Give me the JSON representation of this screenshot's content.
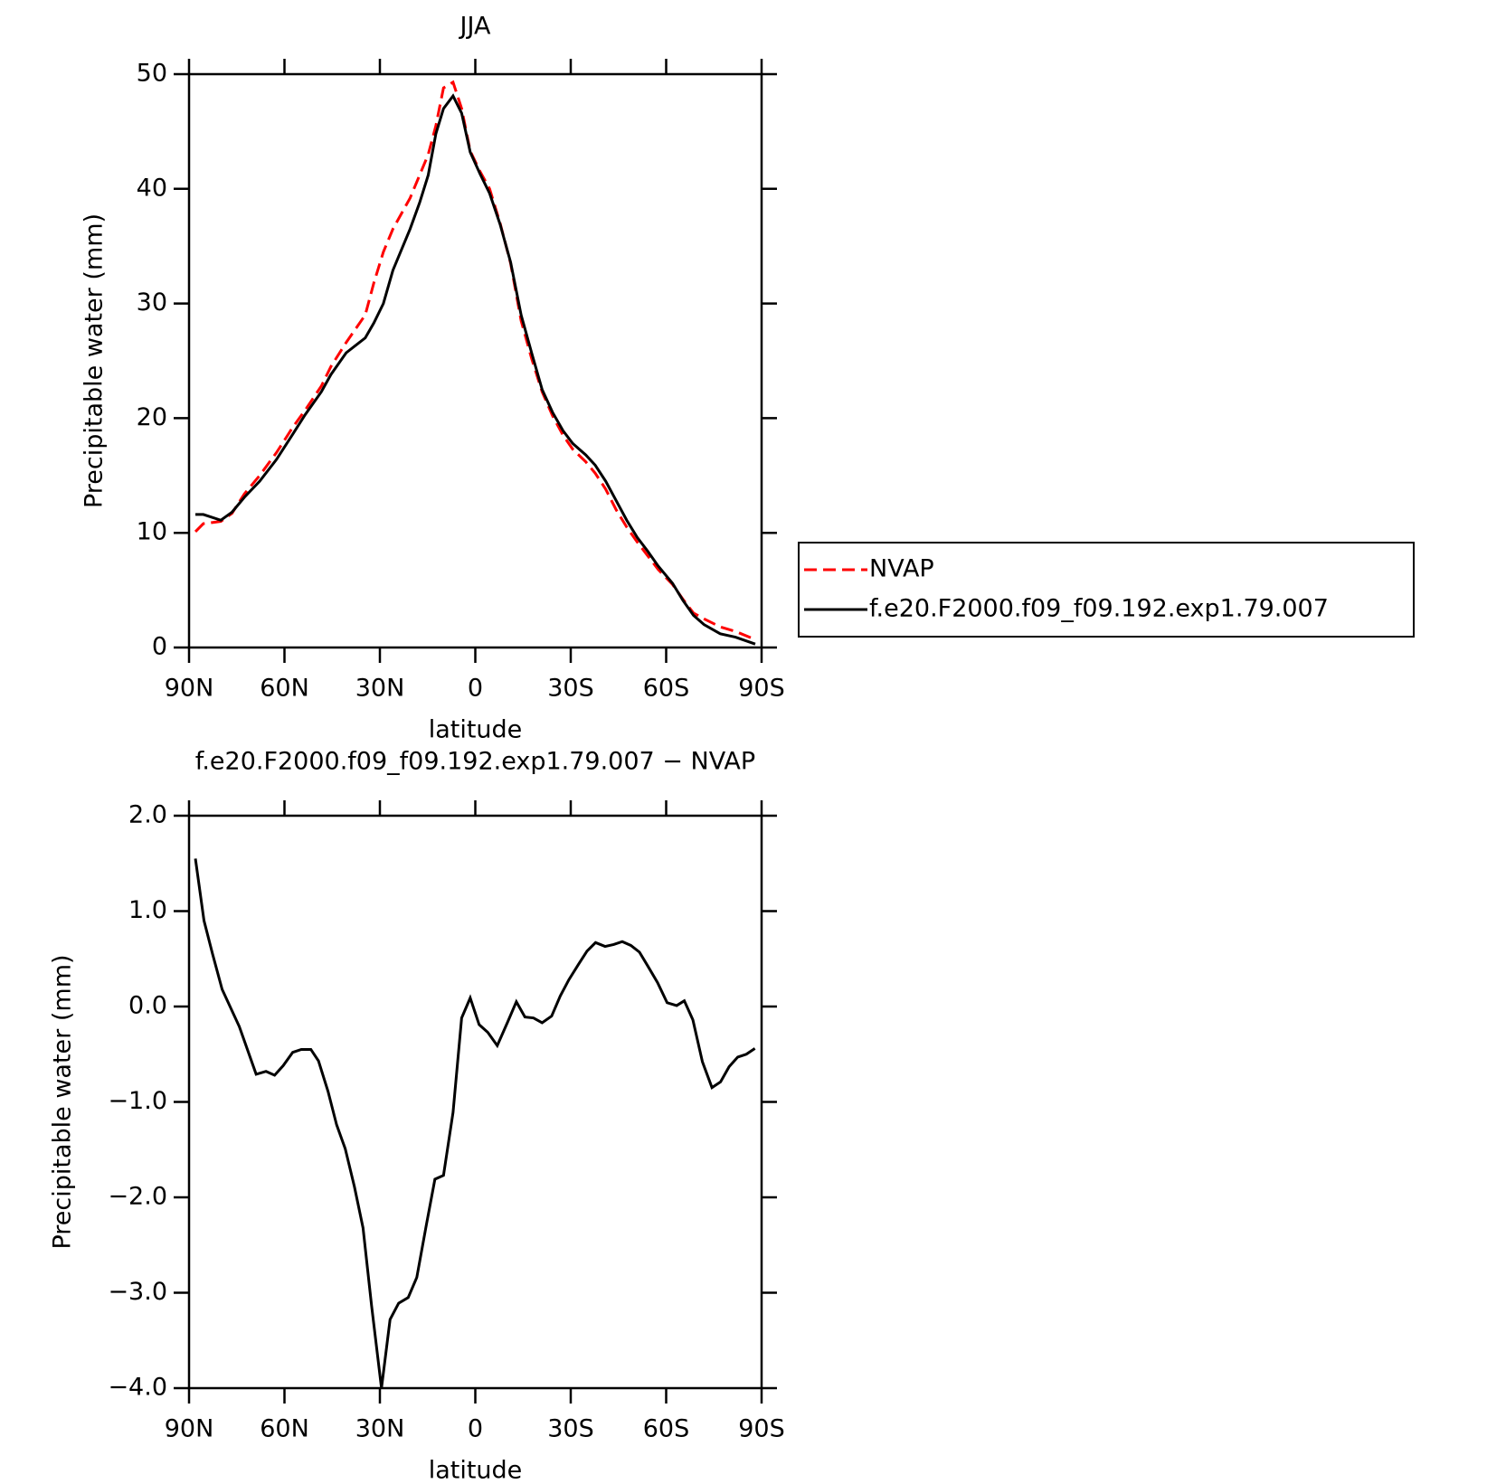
{
  "chart_data": [
    {
      "type": "line",
      "title": "JJA",
      "xlabel": "latitude",
      "ylabel": "Precipitable water (mm)",
      "legend": "right",
      "x": [
        88,
        85.5,
        80,
        76.5,
        72.6,
        67.8,
        62.5,
        57.4,
        53.5,
        48.4,
        45.4,
        40.6,
        34.6,
        31.9,
        28.9,
        25.9,
        20.5,
        17.5,
        14.8,
        12.4,
        10.0,
        7.0,
        4.3,
        1.6,
        -1.5,
        -4.5,
        -7.8,
        -11.1,
        -14.4,
        -17.7,
        -21.0,
        -24.3,
        -27.6,
        -30.6,
        -34.7,
        -37.7,
        -41.0,
        -44.3,
        -47.6,
        -50.9,
        -54.2,
        -57.5,
        -62.0,
        -65.3,
        -68.6,
        -71.9,
        -77,
        -81.8,
        -88
      ],
      "series": [
        {
          "name": "NVAP",
          "color": "#ff0000",
          "style": "dashed",
          "values": [
            10.1,
            10.8,
            11.0,
            11.7,
            13.4,
            15.0,
            17.0,
            19.2,
            20.7,
            22.8,
            24.5,
            26.6,
            29.0,
            31.8,
            34.5,
            36.5,
            39.2,
            41.2,
            43.0,
            45.5,
            48.8,
            49.3,
            47.0,
            43.3,
            41.5,
            40.0,
            37.0,
            33.5,
            28.5,
            25.2,
            22.3,
            20.2,
            18.5,
            17.3,
            16.2,
            15.2,
            13.8,
            12.0,
            10.5,
            9.2,
            8.0,
            6.8,
            5.5,
            4.2,
            3.0,
            2.5,
            1.8,
            1.4,
            0.7
          ]
        },
        {
          "name": "f.e20.F2000.f09_f09.192.exp1.79.007",
          "color": "#000000",
          "style": "solid",
          "values": [
            11.6,
            11.6,
            11.1,
            11.8,
            13.1,
            14.5,
            16.4,
            18.6,
            20.3,
            22.3,
            23.8,
            25.7,
            27.0,
            28.3,
            30.0,
            32.9,
            36.5,
            38.8,
            41.2,
            44.8,
            47.0,
            48.1,
            46.6,
            43.2,
            41.3,
            39.6,
            36.9,
            33.6,
            29.0,
            25.7,
            22.5,
            20.5,
            18.9,
            17.8,
            16.8,
            15.9,
            14.5,
            12.8,
            11.1,
            9.6,
            8.4,
            7.1,
            5.6,
            4.1,
            2.8,
            2.0,
            1.2,
            0.9,
            0.3
          ]
        }
      ],
      "xlim": [
        90,
        -90
      ],
      "xticks": [
        {
          "value": 90,
          "label": "90N"
        },
        {
          "value": 60,
          "label": "60N"
        },
        {
          "value": 30,
          "label": "30N"
        },
        0,
        {
          "value": -30,
          "label": "30S"
        },
        {
          "value": -60,
          "label": "60S"
        },
        {
          "value": -90,
          "label": "90S"
        }
      ],
      "ylim": [
        0,
        50
      ],
      "yticks": [
        0,
        10,
        20,
        30,
        40,
        50
      ]
    },
    {
      "type": "line",
      "title": "f.e20.F2000.f09_f09.192.exp1.79.007 − NVAP",
      "xlabel": "latitude",
      "ylabel": "Precipitable water (mm)",
      "x": [
        88,
        85.3,
        82.6,
        79.6,
        74.2,
        68.9,
        65.8,
        63.1,
        60.4,
        57.4,
        54.7,
        51.7,
        49.3,
        46.3,
        43.6,
        40.9,
        38.0,
        35.3,
        32.6,
        29.5,
        26.8,
        24.1,
        21.1,
        18.4,
        15.4,
        12.7,
        10.0,
        7.0,
        4.3,
        1.6,
        -1.2,
        -3.9,
        -6.9,
        -10.2,
        -12.9,
        -15.6,
        -18.3,
        -21.0,
        -24.0,
        -26.7,
        -29.4,
        -32.4,
        -35.1,
        -37.8,
        -40.8,
        -43.5,
        -46.2,
        -48.9,
        -51.6,
        -54.3,
        -57.3,
        -60.3,
        -63.3,
        -65.7,
        -68.4,
        -71.4,
        -74.4,
        -77.1,
        -79.8,
        -82.5,
        -85.2,
        -87.9
      ],
      "series": [
        {
          "color": "#000000",
          "style": "solid",
          "values": [
            1.55,
            0.9,
            0.55,
            0.18,
            -0.21,
            -0.71,
            -0.68,
            -0.72,
            -0.62,
            -0.48,
            -0.45,
            -0.45,
            -0.57,
            -0.89,
            -1.24,
            -1.49,
            -1.89,
            -2.32,
            -3.14,
            -4.0,
            -3.28,
            -3.11,
            -3.05,
            -2.84,
            -2.29,
            -1.81,
            -1.77,
            -1.11,
            -0.12,
            0.09,
            -0.19,
            -0.27,
            -0.41,
            -0.16,
            0.05,
            -0.11,
            -0.12,
            -0.17,
            -0.1,
            0.11,
            0.28,
            0.44,
            0.58,
            0.67,
            0.63,
            0.65,
            0.68,
            0.64,
            0.57,
            0.42,
            0.25,
            0.04,
            0.01,
            0.06,
            -0.14,
            -0.58,
            -0.85,
            -0.79,
            -0.63,
            -0.53,
            -0.5,
            -0.44
          ]
        }
      ],
      "xlim": [
        90,
        -90
      ],
      "xticks": [
        {
          "value": 90,
          "label": "90N"
        },
        {
          "value": 60,
          "label": "60N"
        },
        {
          "value": 30,
          "label": "30N"
        },
        0,
        {
          "value": -30,
          "label": "30S"
        },
        {
          "value": -60,
          "label": "60S"
        },
        {
          "value": -90,
          "label": "90S"
        }
      ],
      "ylim": [
        -4,
        2
      ],
      "yticks": [
        {
          "value": -4,
          "label": "−4.0"
        },
        {
          "value": -3,
          "label": "−3.0"
        },
        {
          "value": -2,
          "label": "−2.0"
        },
        {
          "value": -1,
          "label": "−1.0"
        },
        {
          "value": 0,
          "label": "0.0"
        },
        {
          "value": 1,
          "label": "1.0"
        },
        {
          "value": 2,
          "label": "2.0"
        }
      ]
    }
  ]
}
